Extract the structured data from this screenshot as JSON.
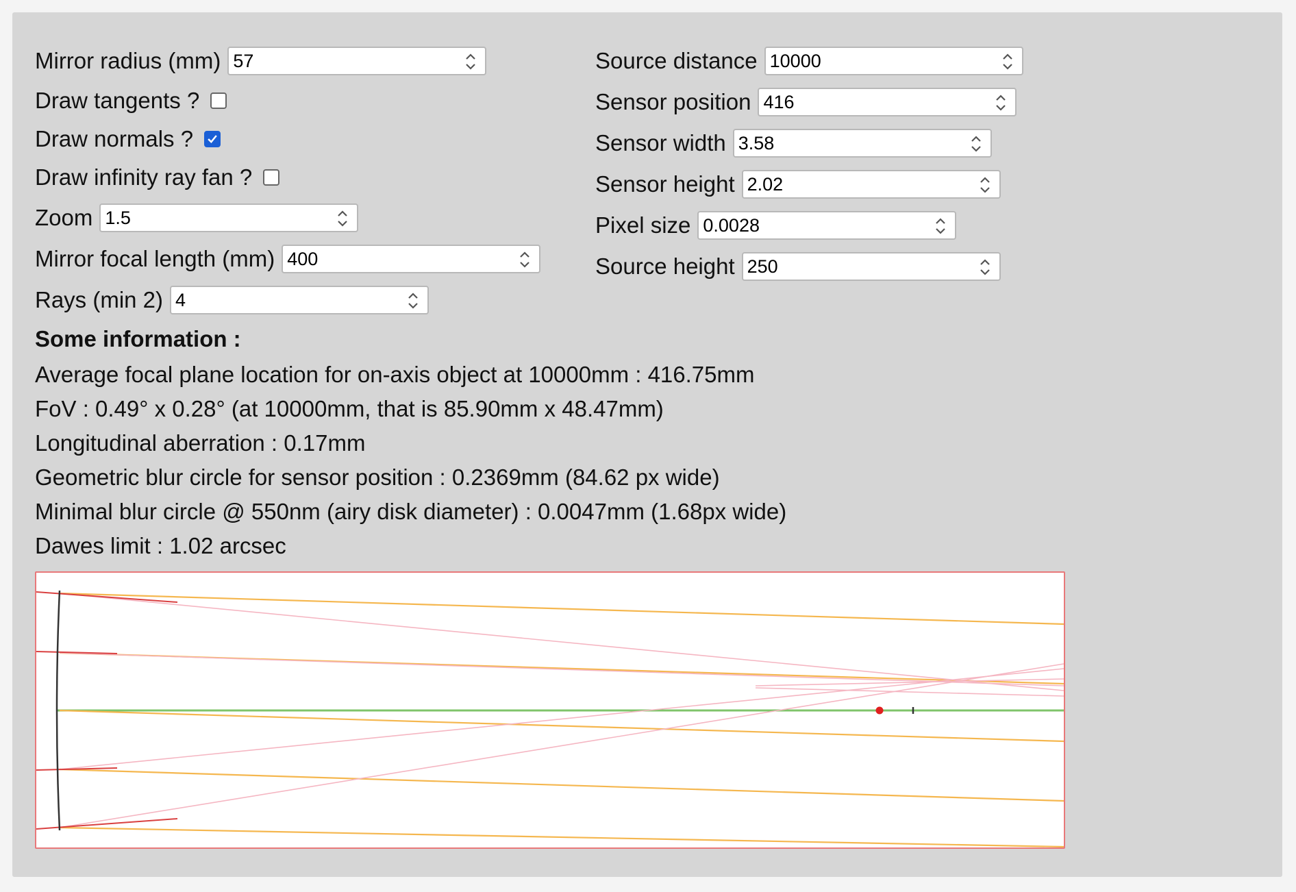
{
  "left_controls": {
    "mirror_radius": {
      "label": "Mirror radius (mm)",
      "value": "57"
    },
    "draw_tangents": {
      "label": "Draw tangents ?",
      "checked": false
    },
    "draw_normals": {
      "label": "Draw normals ?",
      "checked": true
    },
    "draw_infinity_ray_fan": {
      "label": "Draw infinity ray fan ?",
      "checked": false
    },
    "zoom": {
      "label": "Zoom",
      "value": "1.5"
    },
    "mirror_focal_length": {
      "label": "Mirror focal length (mm)",
      "value": "400"
    },
    "rays": {
      "label": "Rays (min 2)",
      "value": "4"
    }
  },
  "right_controls": {
    "source_distance": {
      "label": "Source distance",
      "value": "10000"
    },
    "sensor_position": {
      "label": "Sensor position",
      "value": "416"
    },
    "sensor_width": {
      "label": "Sensor width",
      "value": "3.58"
    },
    "sensor_height": {
      "label": "Sensor height",
      "value": "2.02"
    },
    "pixel_size": {
      "label": "Pixel size",
      "value": "0.0028"
    },
    "source_height": {
      "label": "Source height",
      "value": "250"
    }
  },
  "info": {
    "title": "Some information :",
    "lines": [
      "Average focal plane location for on-axis object at 10000mm : 416.75mm",
      "FoV : 0.49° x 0.28° (at 10000mm, that is 85.90mm x 48.47mm)",
      "Longitudinal aberration : 0.17mm",
      "Geometric blur circle for sensor position : 0.2369mm (84.62 px wide)",
      "Minimal blur circle @ 550nm (airy disk diameter) : 0.0047mm (1.68px wide)",
      "Dawes limit : 1.02 arcsec"
    ]
  },
  "colors": {
    "panel": "#d6d6d6",
    "canvas_border": "#e8787a",
    "incoming_ray": "#f5b74f",
    "reflected_ray": "#f5b6c2",
    "normal_line": "#d94040",
    "optical_axis": "#7fc46a",
    "mirror": "#333333",
    "focus_marker": "#e02020",
    "checkbox_on": "#1a5fd6"
  }
}
